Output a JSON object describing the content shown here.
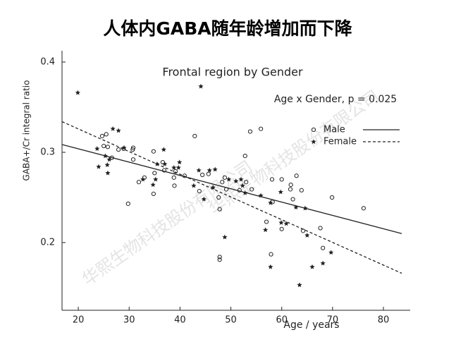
{
  "slide_title": "人体内GABA随年龄增加而下降",
  "watermark": "华熙生物科技股份有限公司",
  "chart_data": {
    "type": "scatter",
    "title": "Frontal region by Gender",
    "annotation": "Age x Gender, p = 0.025",
    "x_label": "Age / years",
    "y_label": "GABA+/Cr integral ratio",
    "xlim": [
      16.8,
      83.6
    ],
    "ylim": [
      0.125,
      0.4125
    ],
    "xticks": [
      20,
      30,
      40,
      50,
      60,
      70,
      80
    ],
    "yticks": [
      0.2,
      0.3,
      0.4
    ],
    "legend": "upper right",
    "series": [
      {
        "name": "Male",
        "marker": "circle",
        "color": "#222222",
        "x": [
          24.7,
          25.5,
          25.0,
          25.8,
          26.6,
          27.9,
          28.9,
          29.8,
          30.7,
          30.8,
          30.8,
          31.9,
          33.0,
          34.8,
          34.8,
          35.0,
          36.6,
          36.9,
          38.8,
          38.9,
          39.1,
          40.9,
          42.9,
          43.8,
          44.4,
          45.6,
          47.6,
          47.8,
          47.8,
          47.8,
          48.8,
          48.3,
          49.1,
          51.7,
          52.8,
          53.0,
          53.8,
          54.1,
          55.9,
          57.0,
          57.9,
          58.1,
          58.2,
          60.0,
          60.0,
          61.7,
          61.8,
          62.2,
          62.9,
          63.9,
          64.2,
          67.6,
          68.1,
          69.9,
          76.1
        ],
        "values": [
          0.318,
          0.32,
          0.307,
          0.306,
          0.294,
          0.303,
          0.304,
          0.243,
          0.303,
          0.292,
          0.305,
          0.267,
          0.272,
          0.301,
          0.254,
          0.277,
          0.289,
          0.28,
          0.272,
          0.263,
          0.279,
          0.274,
          0.318,
          0.257,
          0.275,
          0.276,
          0.25,
          0.237,
          0.184,
          0.181,
          0.272,
          0.267,
          0.259,
          0.258,
          0.296,
          0.267,
          0.323,
          0.259,
          0.326,
          0.223,
          0.187,
          0.27,
          0.245,
          0.27,
          0.215,
          0.259,
          0.264,
          0.248,
          0.274,
          0.258,
          0.213,
          0.216,
          0.194,
          0.25,
          0.238
        ],
        "fit": {
          "dashed": false,
          "x": [
            16.8,
            83.6
          ],
          "y": [
            0.3086,
            0.21
          ]
        }
      },
      {
        "name": "Female",
        "marker": "star",
        "color": "#222222",
        "x": [
          19.9,
          23.7,
          24.0,
          25.3,
          25.7,
          25.8,
          26.1,
          26.8,
          27.9,
          29.0,
          32.7,
          34.7,
          35.2,
          35.5,
          36.8,
          37.0,
          38.8,
          39.7,
          39.9,
          42.7,
          43.7,
          44.1,
          44.7,
          45.8,
          46.5,
          46.9,
          48.8,
          49.6,
          51.0,
          52.0,
          52.3,
          52.8,
          55.9,
          56.8,
          57.8,
          57.8,
          59.8,
          59.9,
          60.9,
          62.8,
          63.5,
          64.6,
          65.0,
          66.0,
          68.1,
          69.7
        ],
        "values": [
          0.366,
          0.304,
          0.284,
          0.296,
          0.286,
          0.277,
          0.292,
          0.326,
          0.324,
          0.305,
          0.27,
          0.264,
          0.27,
          0.287,
          0.303,
          0.287,
          0.283,
          0.283,
          0.289,
          0.263,
          0.28,
          0.373,
          0.248,
          0.28,
          0.261,
          0.281,
          0.206,
          0.27,
          0.268,
          0.27,
          0.263,
          0.255,
          0.252,
          0.214,
          0.244,
          0.173,
          0.256,
          0.222,
          0.221,
          0.239,
          0.153,
          0.238,
          0.208,
          0.173,
          0.177,
          0.189
        ],
        "fit": {
          "dashed": true,
          "x": [
            16.8,
            83.6
          ],
          "y": [
            0.334,
            0.166
          ]
        }
      }
    ]
  }
}
